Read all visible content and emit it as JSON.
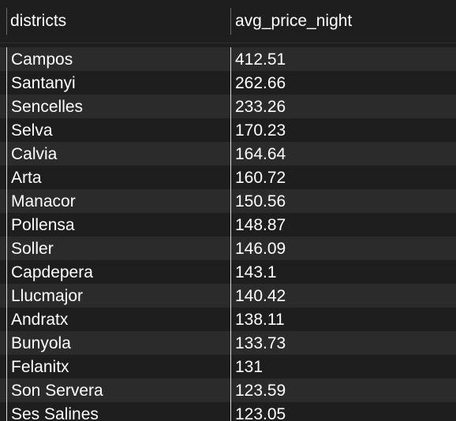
{
  "table": {
    "columns": [
      "districts",
      "avg_price_night"
    ],
    "rows": [
      [
        "Campos",
        "412.51"
      ],
      [
        "Santanyi",
        "262.66"
      ],
      [
        "Sencelles",
        "233.26"
      ],
      [
        "Selva",
        "170.23"
      ],
      [
        "Calvia",
        "164.64"
      ],
      [
        "Arta",
        "160.72"
      ],
      [
        "Manacor",
        "150.56"
      ],
      [
        "Pollensa",
        "148.87"
      ],
      [
        "Soller",
        "146.09"
      ],
      [
        "Capdepera",
        "143.1"
      ],
      [
        "Llucmajor",
        "140.42"
      ],
      [
        "Andratx",
        "138.11"
      ],
      [
        "Bunyola",
        "133.73"
      ],
      [
        "Felanitx",
        "131"
      ],
      [
        "Son Servera",
        "123.59"
      ],
      [
        "Ses Salines",
        "123.05"
      ]
    ]
  },
  "colors": {
    "background": "#1e1e1e",
    "row_alt": "#2b2b2b",
    "text": "#ffffff",
    "grid_line": "#d9d9d9"
  }
}
